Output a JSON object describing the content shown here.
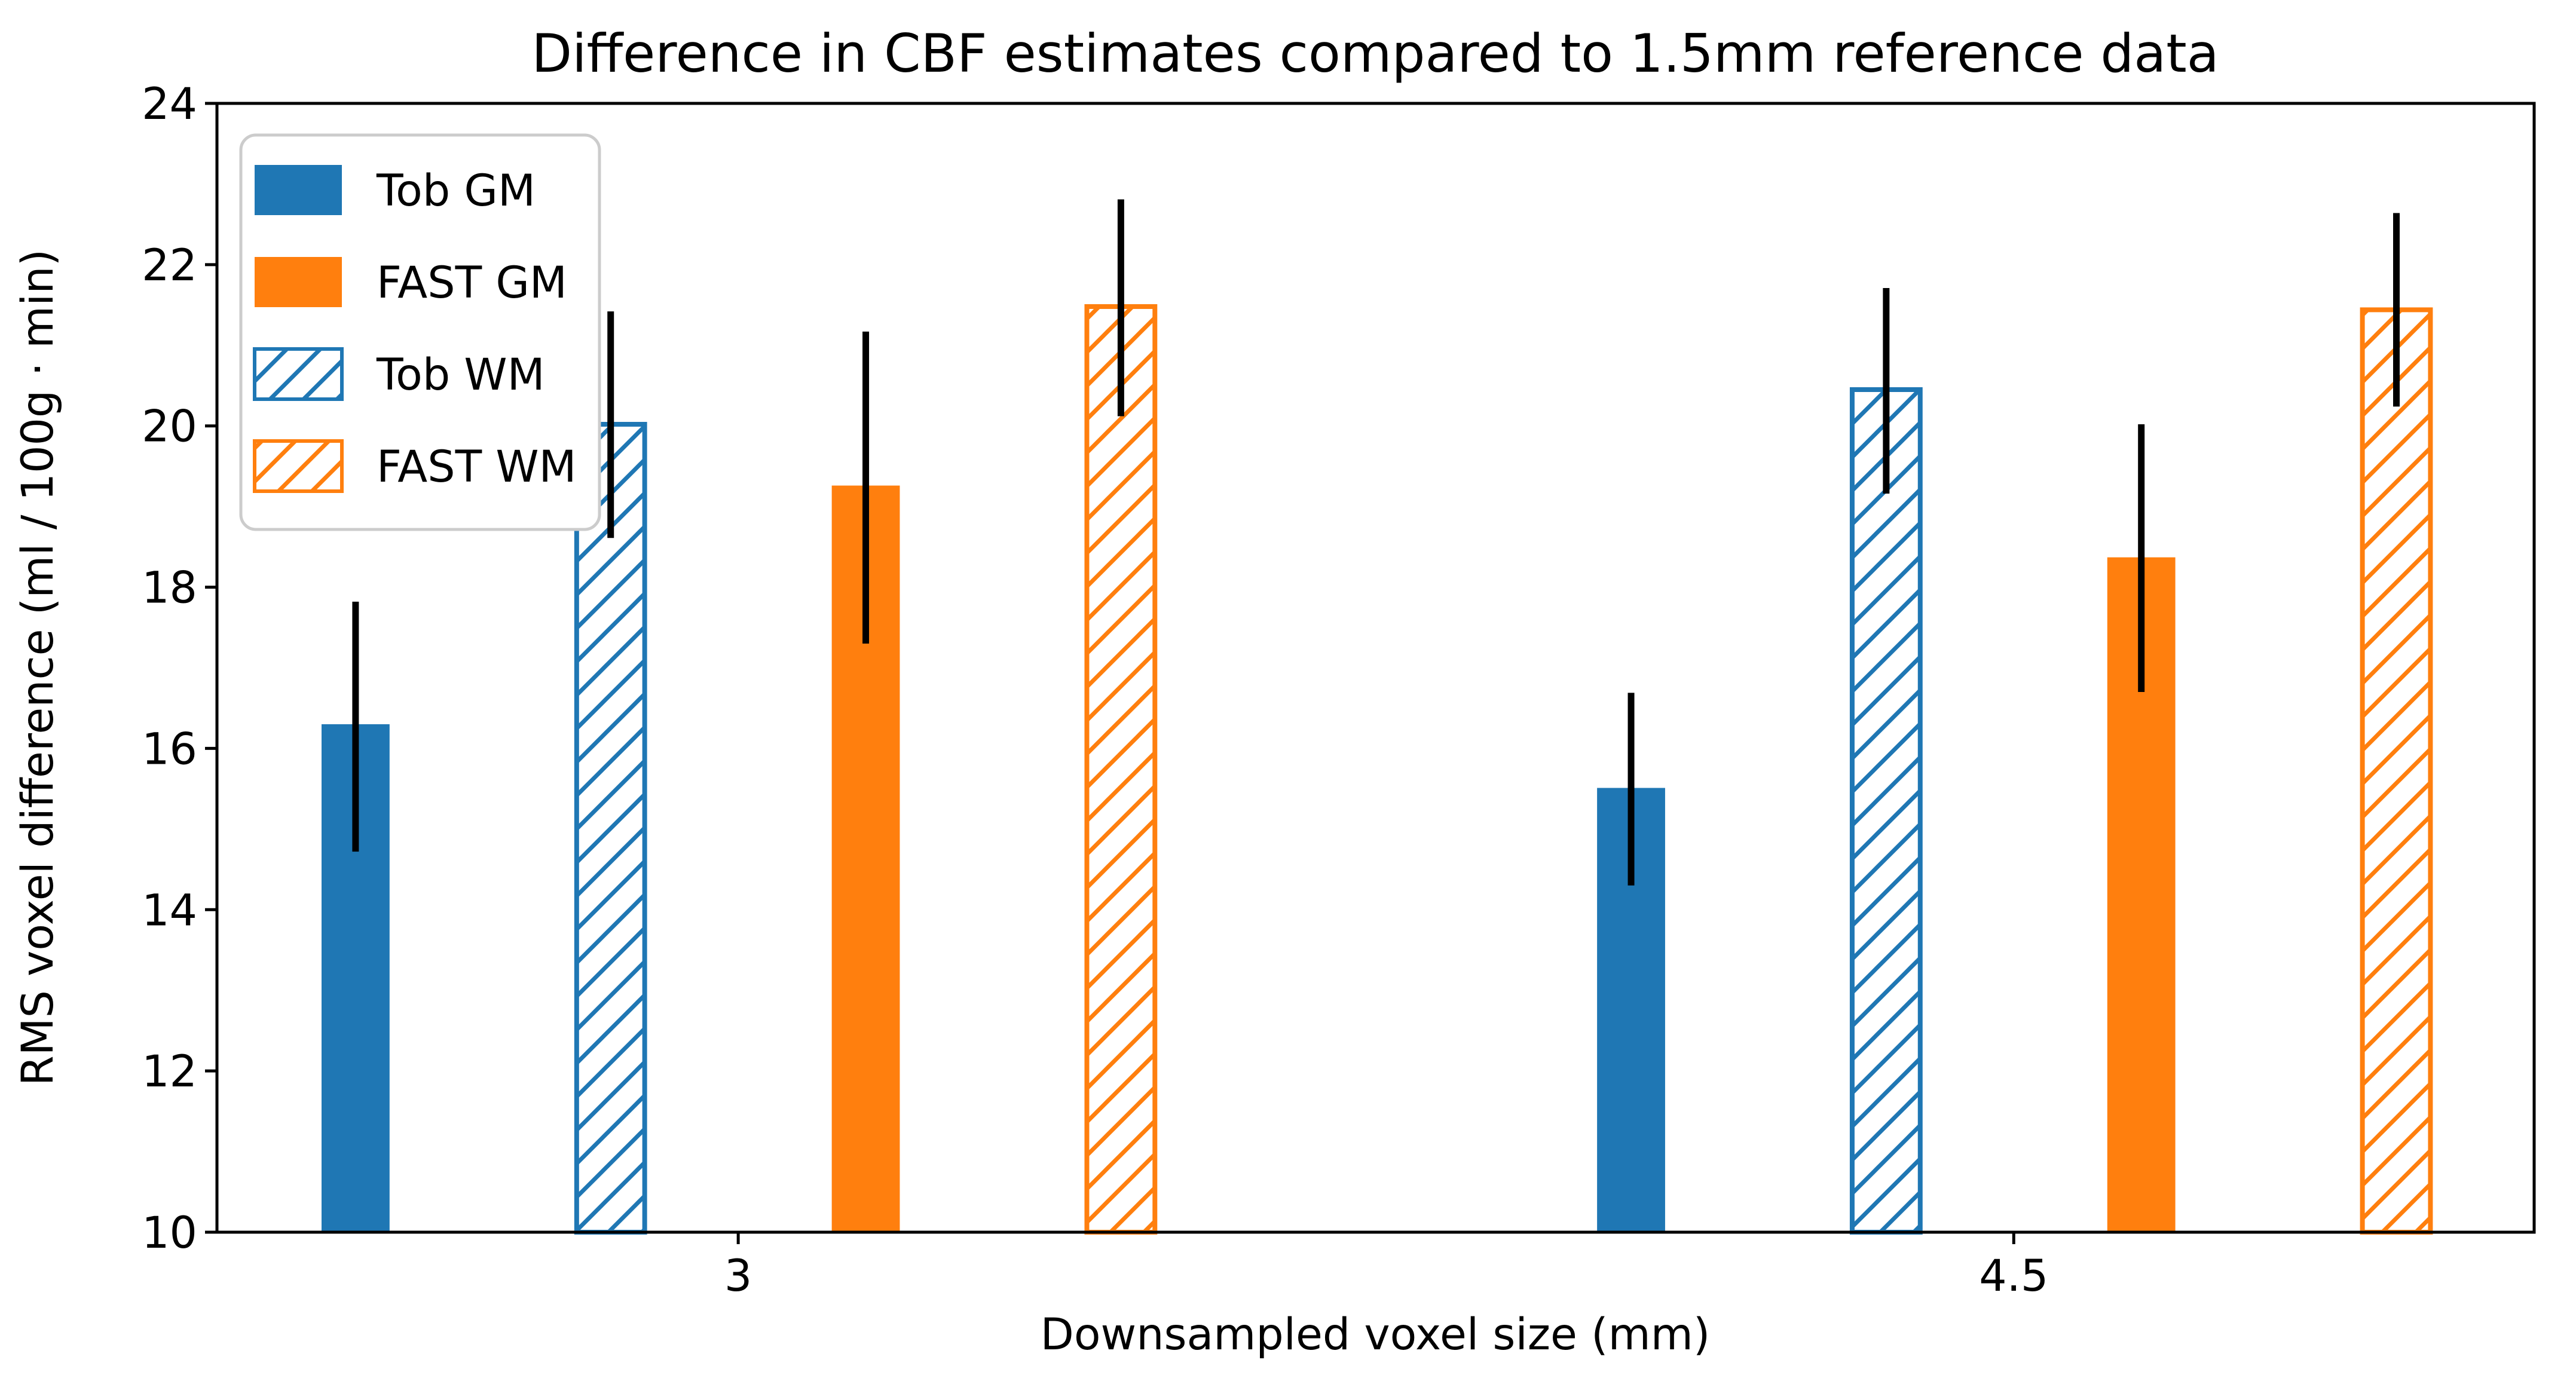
{
  "title": "Difference in CBF estimates compared to 1.5mm reference data",
  "x_axis": {
    "label": "Downsampled voxel size (mm)",
    "tick_labels": [
      "3",
      "4.5"
    ]
  },
  "y_axis": {
    "label": "RMS voxel difference (ml / 100g · min)",
    "ticks": [
      10,
      12,
      14,
      16,
      18,
      20,
      22,
      24
    ]
  },
  "colors": {
    "blue": "#1f77b4",
    "orange": "#ff7f0e",
    "error_bar": "#000000",
    "legend_border": "#cccccc",
    "background": "#ffffff",
    "text": "#000000"
  },
  "legend": {
    "position": "upper left",
    "items": [
      {
        "label": "Tob GM",
        "color": "#1f77b4",
        "hatch": false
      },
      {
        "label": "FAST GM",
        "color": "#ff7f0e",
        "hatch": false
      },
      {
        "label": "Tob WM",
        "color": "#1f77b4",
        "hatch": true
      },
      {
        "label": "FAST WM",
        "color": "#ff7f0e",
        "hatch": true
      }
    ]
  },
  "chart_data": {
    "type": "bar",
    "title": "Difference in CBF estimates compared to 1.5mm reference data",
    "xlabel": "Downsampled voxel size (mm)",
    "ylabel": "RMS voxel difference (ml / 100g · min)",
    "categories": [
      "3",
      "4.5"
    ],
    "group_positions": [
      3,
      4.5
    ],
    "bar_width": 0.08,
    "xlim": [
      2.387,
      5.112
    ],
    "ylim": [
      10,
      24
    ],
    "y_tick_step": 2,
    "grid": false,
    "legend_position": "upper left",
    "bar_order_within_group": [
      "Tob GM",
      "Tob WM",
      "FAST GM",
      "FAST WM"
    ],
    "series": [
      {
        "name": "Tob GM",
        "color": "#1f77b4",
        "hatch": false,
        "offset": -0.45,
        "values": [
          16.3,
          15.51
        ],
        "err_low": [
          14.72,
          14.3
        ],
        "err_high": [
          17.82,
          16.69
        ]
      },
      {
        "name": "FAST GM",
        "color": "#ff7f0e",
        "hatch": false,
        "offset": 0.15,
        "values": [
          19.26,
          18.37
        ],
        "err_low": [
          17.3,
          16.7
        ],
        "err_high": [
          21.17,
          20.02
        ]
      },
      {
        "name": "Tob WM",
        "color": "#1f77b4",
        "hatch": true,
        "offset": -0.15,
        "values": [
          20.02,
          20.45
        ],
        "err_low": [
          18.61,
          19.16
        ],
        "err_high": [
          21.42,
          21.71
        ]
      },
      {
        "name": "FAST WM",
        "color": "#ff7f0e",
        "hatch": true,
        "offset": 0.45,
        "values": [
          21.48,
          21.44
        ],
        "err_low": [
          20.12,
          20.24
        ],
        "err_high": [
          22.81,
          22.64
        ]
      }
    ]
  }
}
